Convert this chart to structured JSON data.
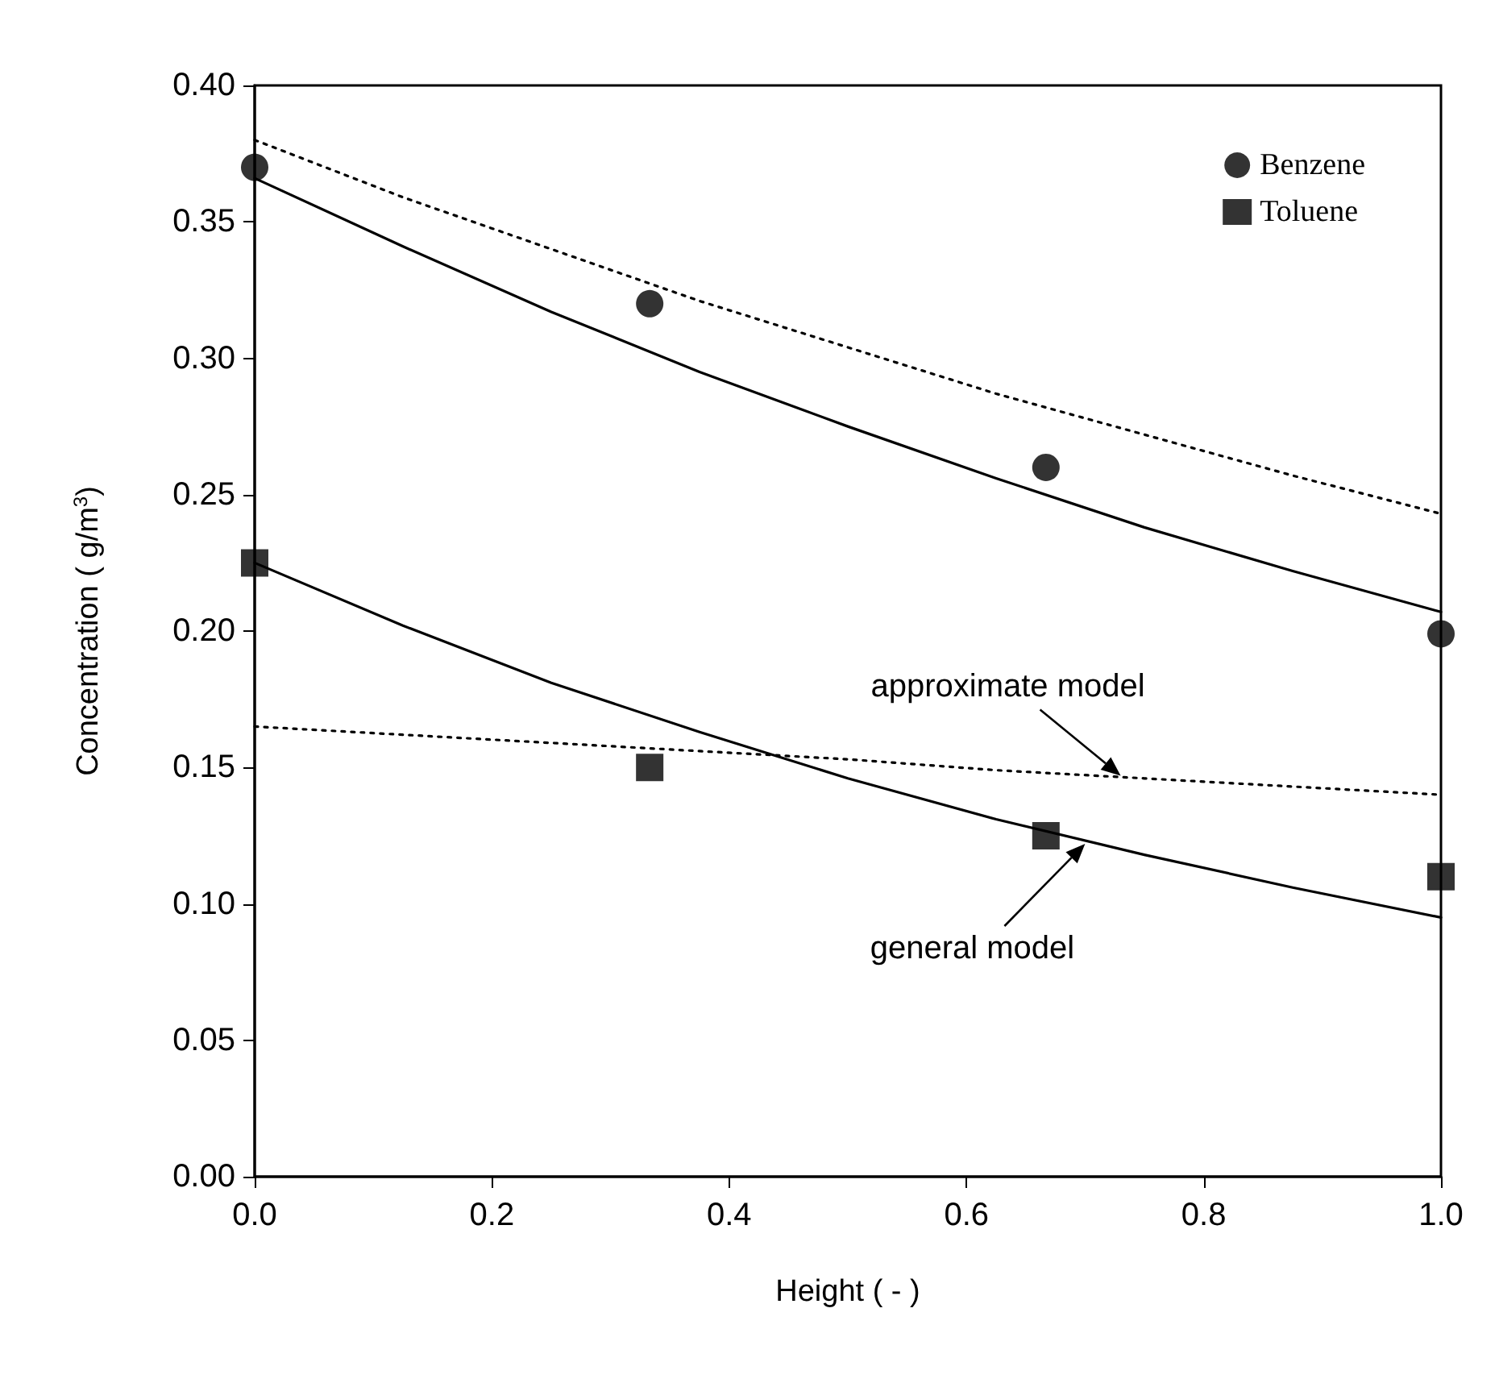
{
  "chart_data": {
    "type": "scatter",
    "xlabel": "Height ( - )",
    "ylabel": "Concentration ( g/m$^{3}$)",
    "xlim": [
      0,
      1
    ],
    "ylim": [
      0,
      0.4
    ],
    "xticks": [
      {
        "value": 0,
        "label": "0.0"
      },
      {
        "value": 0.2,
        "label": "0.2"
      },
      {
        "value": 0.4,
        "label": "0.4"
      },
      {
        "value": 0.6,
        "label": "0.6"
      },
      {
        "value": 0.8,
        "label": "0.8"
      },
      {
        "value": 1,
        "label": "1.0"
      }
    ],
    "yticks": [
      {
        "value": 0,
        "label": "0.00"
      },
      {
        "value": 0.05,
        "label": "0.05"
      },
      {
        "value": 0.1,
        "label": "0.10"
      },
      {
        "value": 0.15,
        "label": "0.15"
      },
      {
        "value": 0.2,
        "label": "0.20"
      },
      {
        "value": 0.25,
        "label": "0.25"
      },
      {
        "value": 0.3,
        "label": "0.30"
      },
      {
        "value": 0.35,
        "label": "0.35"
      },
      {
        "value": 0.4,
        "label": "0.40"
      }
    ],
    "grid": false,
    "legend": "top right",
    "series": [
      {
        "name": "Benzene",
        "marker": "circle",
        "color": "#000000",
        "x": [
          0,
          0.333,
          0.667,
          1
        ],
        "values": [
          0.37,
          0.32,
          0.26,
          0.199
        ]
      },
      {
        "name": "Toluene",
        "marker": "square",
        "color": "#000000",
        "x": [
          0,
          0.333,
          0.667,
          1
        ],
        "values": [
          0.225,
          0.15,
          0.125,
          0.11
        ]
      },
      {
        "type": "line",
        "marker": "none",
        "line_style": "solid",
        "color": "#000000",
        "x": [
          0,
          0.125,
          0.25,
          0.375,
          0.5,
          0.625,
          0.75,
          0.875,
          1
        ],
        "values": [
          0.366,
          0.341,
          0.317,
          0.295,
          0.275,
          0.256,
          0.238,
          0.222,
          0.207
        ]
      },
      {
        "type": "line",
        "marker": "none",
        "line_style": "solid",
        "color": "#000000",
        "x": [
          0,
          0.125,
          0.25,
          0.375,
          0.5,
          0.625,
          0.75,
          0.875,
          1
        ],
        "values": [
          0.225,
          0.202,
          0.181,
          0.163,
          0.146,
          0.131,
          0.118,
          0.106,
          0.095
        ]
      },
      {
        "type": "line",
        "marker": "none",
        "line_style": "dotted",
        "color": "#000000",
        "x": [
          0,
          0.125,
          0.25,
          0.375,
          0.5,
          0.625,
          0.75,
          0.875,
          1
        ],
        "values": [
          0.38,
          0.359,
          0.34,
          0.321,
          0.304,
          0.287,
          0.272,
          0.257,
          0.243
        ]
      },
      {
        "type": "line",
        "marker": "none",
        "line_style": "dotted",
        "color": "#000000",
        "x": [
          0,
          0.125,
          0.25,
          0.375,
          0.5,
          0.625,
          0.75,
          0.875,
          1
        ],
        "values": [
          0.165,
          0.162,
          0.159,
          0.156,
          0.153,
          0.149,
          0.146,
          0.143,
          0.14
        ]
      }
    ],
    "annotations": [
      {
        "text": "approximate model",
        "x": 0.73,
        "y": 0.147
      },
      {
        "text": "general model",
        "x": 0.7,
        "y": 0.122
      }
    ]
  }
}
